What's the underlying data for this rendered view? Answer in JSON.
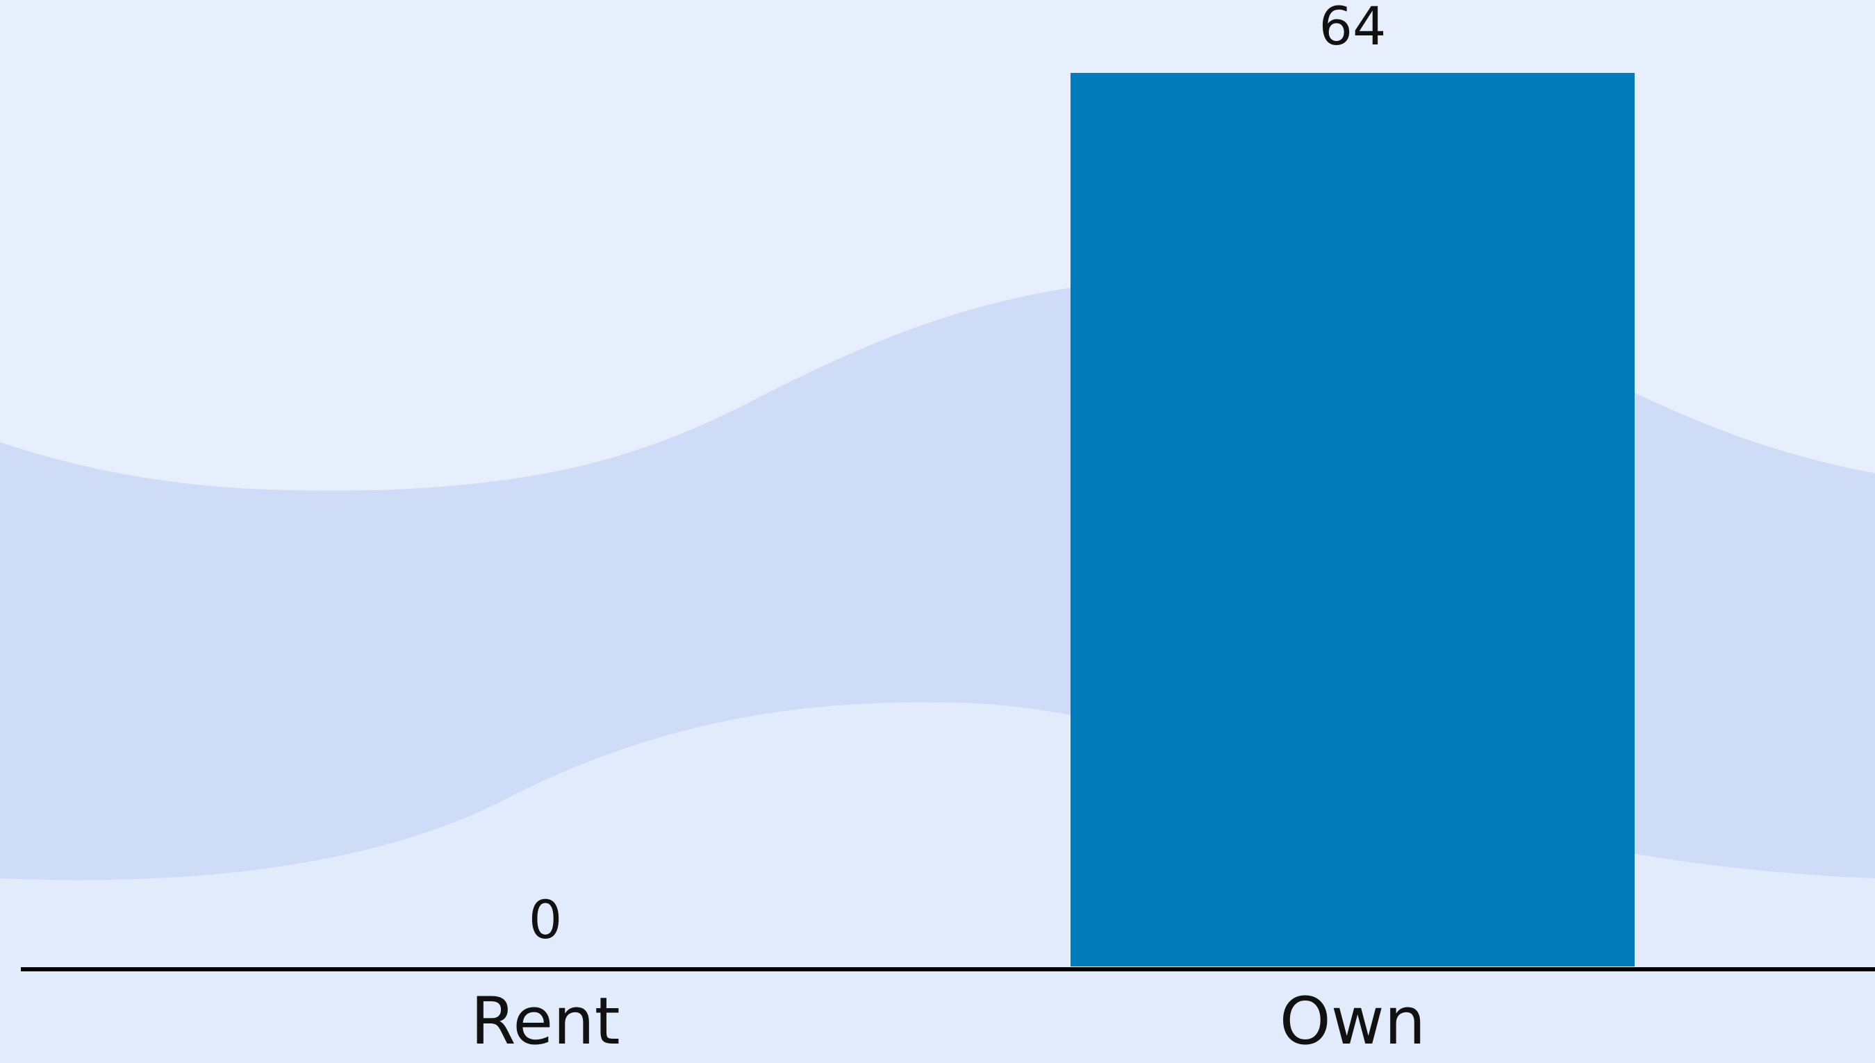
{
  "chart_data": {
    "type": "bar",
    "categories": [
      "Rent",
      "Own"
    ],
    "values": [
      0,
      64
    ],
    "color": "#017bb9"
  }
}
